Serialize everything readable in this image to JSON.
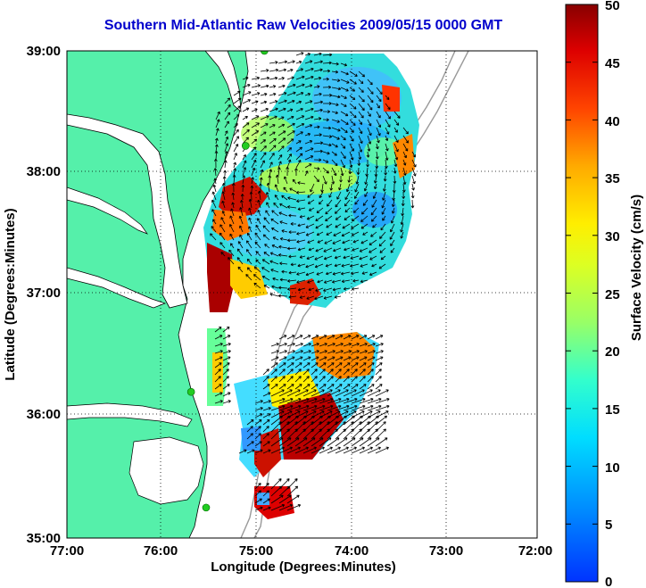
{
  "title": "Southern Mid-Atlantic Raw Velocities 2009/05/15 0000 GMT",
  "axes": {
    "xlabel": "Longitude (Degrees:Minutes)",
    "ylabel": "Latitude (Degrees:Minutes)",
    "xticks": [
      "77:00",
      "76:00",
      "75:00",
      "74:00",
      "73:00",
      "72:00"
    ],
    "yticks": [
      "39:00",
      "38:00",
      "37:00",
      "36:00",
      "35:00"
    ],
    "xlim": [
      -77,
      -72
    ],
    "ylim": [
      35,
      39
    ],
    "grid": "dotted"
  },
  "colorbar": {
    "label": "Surface Velocity (cm/s)",
    "ticks": [
      "50",
      "45",
      "40",
      "35",
      "30",
      "25",
      "20",
      "15",
      "10",
      "5",
      "0"
    ],
    "range": [
      0,
      50
    ],
    "colormap": "jet"
  },
  "colors": {
    "land": "#55f0aa",
    "title": "#0000cc",
    "station": "#22cc22",
    "arrows": "#000000"
  },
  "stations": [
    {
      "lon": -74.9,
      "lat": 39.0
    },
    {
      "lon": -75.1,
      "lat": 38.22
    },
    {
      "lon": -75.68,
      "lat": 36.2
    },
    {
      "lon": -75.52,
      "lat": 35.25
    }
  ]
}
